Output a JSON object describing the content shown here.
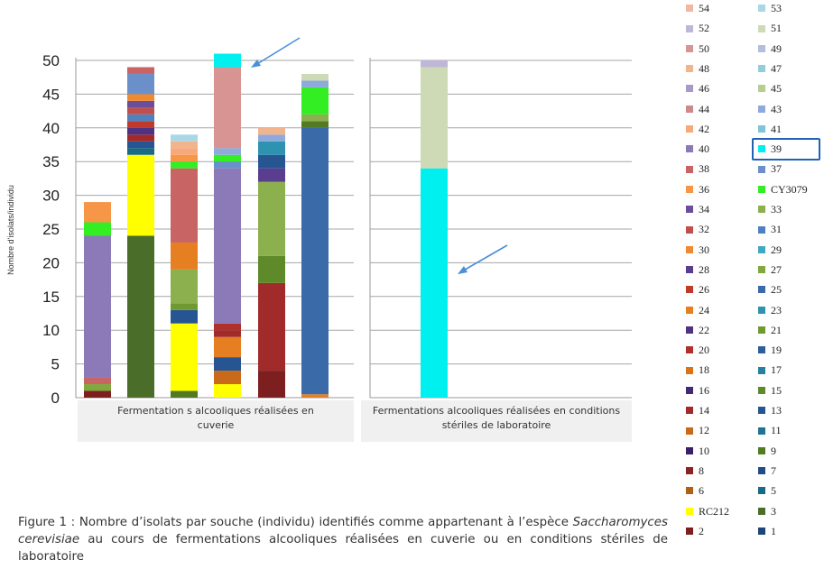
{
  "chart_data": {
    "type": "bar",
    "stacked": true,
    "ylabel": "Nombre d'isolats/individu",
    "ylim": [
      0,
      50
    ],
    "yticks": [
      0,
      5,
      10,
      15,
      20,
      25,
      30,
      35,
      40,
      45,
      50
    ],
    "grid": true,
    "legend_position": "right",
    "panels": [
      {
        "category_label": "Fermentation s alcooliques réalisées en cuverie",
        "bars": [
          {
            "segments": [
              {
                "s": "2",
                "v": 1
              },
              {
                "s": "27",
                "v": 1
              },
              {
                "s": "38",
                "v": 1
              },
              {
                "s": "40",
                "v": 21
              },
              {
                "s": "CY3079",
                "v": 2
              },
              {
                "s": "36",
                "v": 3
              }
            ]
          },
          {
            "segments": [
              {
                "s": "3",
                "v": 24
              },
              {
                "s": "RC212",
                "v": 12
              },
              {
                "s": "5",
                "v": 1
              },
              {
                "s": "13",
                "v": 1
              },
              {
                "s": "14",
                "v": 1
              },
              {
                "s": "22",
                "v": 1
              },
              {
                "s": "26",
                "v": 1
              },
              {
                "s": "31",
                "v": 1
              },
              {
                "s": "32",
                "v": 1
              },
              {
                "s": "34",
                "v": 1
              },
              {
                "s": "30",
                "v": 1
              },
              {
                "s": "37",
                "v": 3
              },
              {
                "s": "38",
                "v": 1
              }
            ]
          },
          {
            "segments": [
              {
                "s": "9",
                "v": 1
              },
              {
                "s": "RC212",
                "v": 10
              },
              {
                "s": "13",
                "v": 2
              },
              {
                "s": "21",
                "v": 1
              },
              {
                "s": "33",
                "v": 5
              },
              {
                "s": "24",
                "v": 4
              },
              {
                "s": "38",
                "v": 11
              },
              {
                "s": "CY3079",
                "v": 1
              },
              {
                "s": "36",
                "v": 1
              },
              {
                "s": "42",
                "v": 1
              },
              {
                "s": "48",
                "v": 1
              },
              {
                "s": "53",
                "v": 1
              }
            ]
          },
          {
            "segments": [
              {
                "s": "RC212",
                "v": 2
              },
              {
                "s": "12",
                "v": 2
              },
              {
                "s": "13",
                "v": 2
              },
              {
                "s": "24",
                "v": 3
              },
              {
                "s": "14",
                "v": 1
              },
              {
                "s": "20",
                "v": 1
              },
              {
                "s": "40",
                "v": 23
              },
              {
                "s": "37",
                "v": 1
              },
              {
                "s": "CY3079",
                "v": 1
              },
              {
                "s": "43",
                "v": 1
              },
              {
                "s": "50",
                "v": 12
              },
              {
                "s": "39",
                "v": 2
              }
            ]
          },
          {
            "segments": [
              {
                "s": "2",
                "v": 4
              },
              {
                "s": "14",
                "v": 13
              },
              {
                "s": "15",
                "v": 4
              },
              {
                "s": "33",
                "v": 11
              },
              {
                "s": "28",
                "v": 2
              },
              {
                "s": "13",
                "v": 2
              },
              {
                "s": "23",
                "v": 2
              },
              {
                "s": "43",
                "v": 1
              },
              {
                "s": "48",
                "v": 1
              }
            ]
          },
          {
            "segments": [
              {
                "s": "24",
                "v": 0.5
              },
              {
                "s": "25",
                "v": 39.5
              },
              {
                "s": "9",
                "v": 1
              },
              {
                "s": "33",
                "v": 1
              },
              {
                "s": "CY3079",
                "v": 4
              },
              {
                "s": "43",
                "v": 1
              },
              {
                "s": "51",
                "v": 1
              }
            ]
          }
        ]
      },
      {
        "category_label": "Fermentations alcooliques réalisées en conditions stériles de laboratoire",
        "bars": [
          {
            "segments": [
              {
                "s": "39",
                "v": 34
              },
              {
                "s": "51",
                "v": 15
              },
              {
                "s": "52",
                "v": 1
              }
            ]
          }
        ]
      }
    ],
    "legend": [
      {
        "name": "54",
        "color": "#f2b7a0"
      },
      {
        "name": "53",
        "color": "#a9d7e6"
      },
      {
        "name": "52",
        "color": "#c0b6d8"
      },
      {
        "name": "51",
        "color": "#cddab5"
      },
      {
        "name": "50",
        "color": "#d89393"
      },
      {
        "name": "49",
        "color": "#b3bedf"
      },
      {
        "name": "48",
        "color": "#f2b48d"
      },
      {
        "name": "47",
        "color": "#93cddd"
      },
      {
        "name": "46",
        "color": "#a799c9"
      },
      {
        "name": "45",
        "color": "#b5cf8e"
      },
      {
        "name": "44",
        "color": "#cd8a8a"
      },
      {
        "name": "43",
        "color": "#8ea9db"
      },
      {
        "name": "42",
        "color": "#f7a97a"
      },
      {
        "name": "41",
        "color": "#7fc4d8"
      },
      {
        "name": "40",
        "color": "#8b79b8"
      },
      {
        "name": "39",
        "color": "#00f0f0"
      },
      {
        "name": "38",
        "color": "#c86464"
      },
      {
        "name": "37",
        "color": "#6b8fc9"
      },
      {
        "name": "36",
        "color": "#f79646"
      },
      {
        "name": "CY3079",
        "color": "#33ee22"
      },
      {
        "name": "34",
        "color": "#6a4e9b"
      },
      {
        "name": "33",
        "color": "#8cb04e"
      },
      {
        "name": "32",
        "color": "#c0504d"
      },
      {
        "name": "31",
        "color": "#4f81bd"
      },
      {
        "name": "30",
        "color": "#f08a30"
      },
      {
        "name": "29",
        "color": "#3fa8c4"
      },
      {
        "name": "28",
        "color": "#5b3d8f"
      },
      {
        "name": "27",
        "color": "#7fa83f"
      },
      {
        "name": "26",
        "color": "#c0392b"
      },
      {
        "name": "25",
        "color": "#3a6aa8"
      },
      {
        "name": "24",
        "color": "#e67e22"
      },
      {
        "name": "23",
        "color": "#2e93b0"
      },
      {
        "name": "22",
        "color": "#4f3282"
      },
      {
        "name": "21",
        "color": "#6f9a32"
      },
      {
        "name": "20",
        "color": "#b0302b"
      },
      {
        "name": "19",
        "color": "#2d5e9e"
      },
      {
        "name": "18",
        "color": "#d9731c"
      },
      {
        "name": "17",
        "color": "#25819e"
      },
      {
        "name": "16",
        "color": "#432875"
      },
      {
        "name": "15",
        "color": "#5e8a2a"
      },
      {
        "name": "14",
        "color": "#a12a2a"
      },
      {
        "name": "13",
        "color": "#275592"
      },
      {
        "name": "12",
        "color": "#c96a1a"
      },
      {
        "name": "11",
        "color": "#1f7590"
      },
      {
        "name": "10",
        "color": "#3a2068"
      },
      {
        "name": "9",
        "color": "#527a22"
      },
      {
        "name": "8",
        "color": "#8e2222"
      },
      {
        "name": "7",
        "color": "#214c86"
      },
      {
        "name": "6",
        "color": "#b05f16"
      },
      {
        "name": "5",
        "color": "#196a84"
      },
      {
        "name": "RC212",
        "color": "#ffff00"
      },
      {
        "name": "3",
        "color": "#4a6e2a"
      },
      {
        "name": "2",
        "color": "#7d1f1f"
      },
      {
        "name": "1",
        "color": "#1e4478"
      }
    ],
    "highlighted_series": "39"
  },
  "caption": {
    "label": "Figure 1 :",
    "text_before": " Nombre d’isolats par souche (individu) identifiés comme appartenant à l’espèce ",
    "species": "Saccharomyces cerevisiae",
    "text_after": " au cours de fermentations alcooliques réalisées en cuverie ou en conditions stériles de laboratoire"
  }
}
